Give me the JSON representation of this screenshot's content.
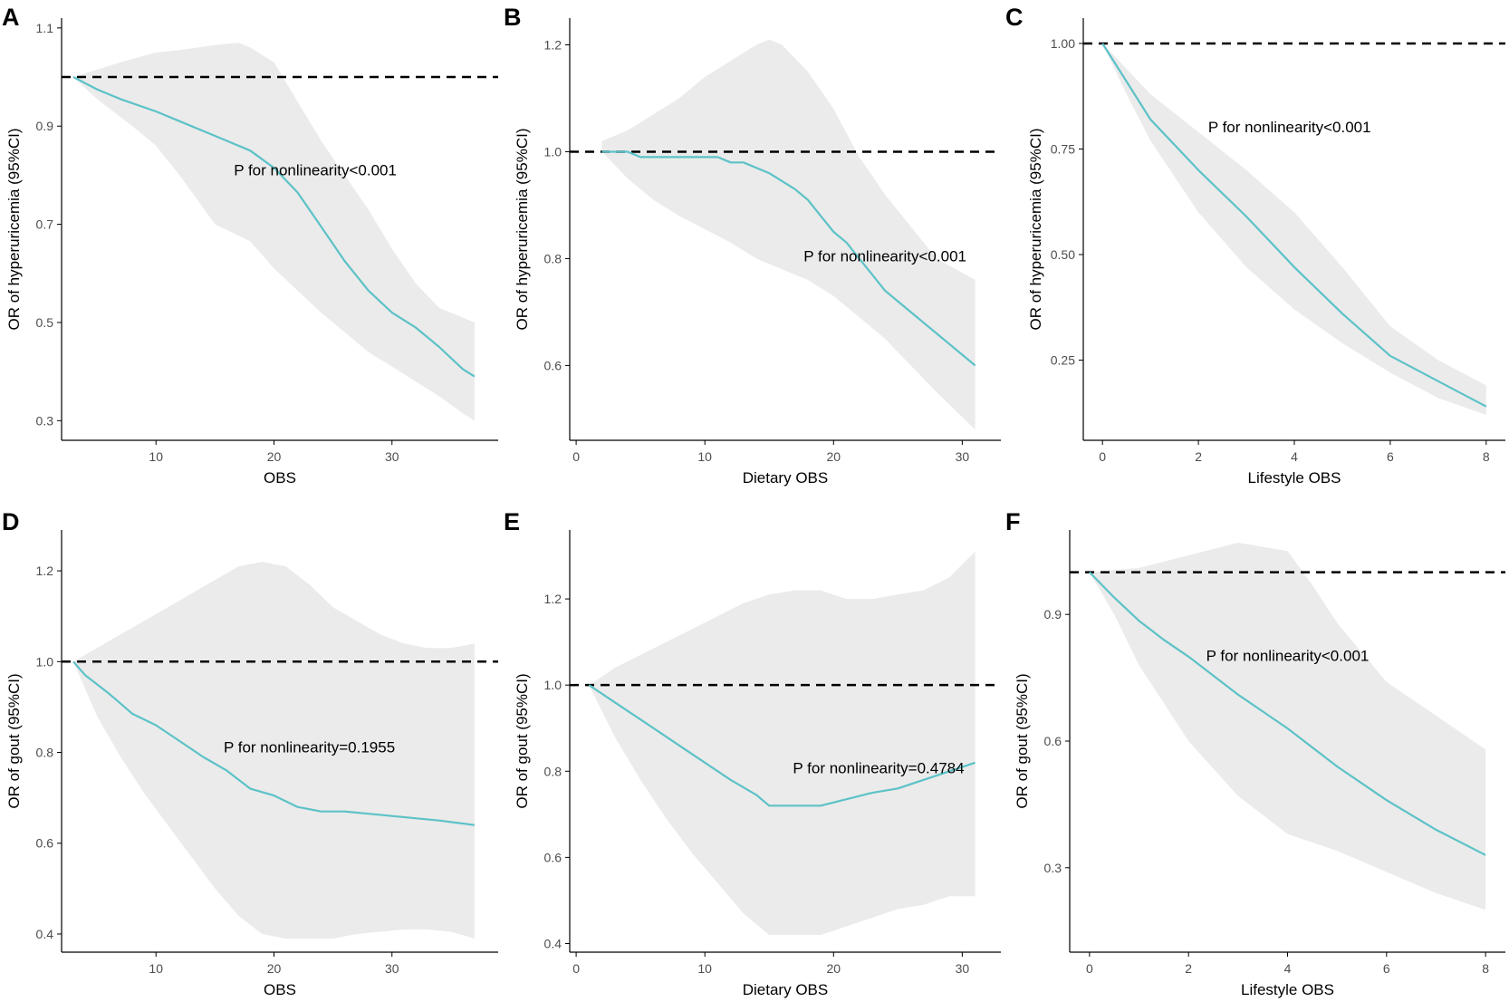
{
  "chart_data": [
    {
      "panel": "A",
      "type": "line",
      "xlabel": "OBS",
      "ylabel": "OR of hyperuricemia (95%CI)",
      "xlim": [
        2,
        39
      ],
      "ylim": [
        0.26,
        1.12
      ],
      "xticks": [
        10,
        20,
        30
      ],
      "yticks": [
        0.3,
        0.5,
        0.7,
        0.9,
        1.1
      ],
      "ytick_labels": [
        "0.3",
        "0.5",
        "0.7",
        "0.9",
        "1.1"
      ],
      "reference_y": 1.0,
      "annotation": "P for nonlinearity<0.001",
      "annotation_at": [
        23.5,
        0.8
      ],
      "series": [
        {
          "name": "OR",
          "x": [
            3,
            5,
            7,
            10,
            12,
            15,
            18,
            20,
            22,
            24,
            26,
            28,
            30,
            32,
            34,
            36,
            37
          ],
          "y": [
            1.0,
            0.975,
            0.955,
            0.93,
            0.91,
            0.88,
            0.85,
            0.815,
            0.765,
            0.695,
            0.625,
            0.565,
            0.52,
            0.49,
            0.45,
            0.405,
            0.39
          ]
        },
        {
          "name": "CI upper",
          "x": [
            3,
            5,
            7,
            10,
            12,
            15,
            17,
            18,
            20,
            22,
            24,
            26,
            28,
            30,
            32,
            34,
            37
          ],
          "y": [
            1.0,
            1.015,
            1.03,
            1.05,
            1.055,
            1.065,
            1.07,
            1.06,
            1.03,
            0.95,
            0.87,
            0.8,
            0.73,
            0.65,
            0.58,
            0.53,
            0.5
          ]
        },
        {
          "name": "CI lower",
          "x": [
            3,
            5,
            8,
            10,
            12,
            15,
            18,
            20,
            22,
            24,
            26,
            28,
            30,
            32,
            34,
            36,
            37
          ],
          "y": [
            1.0,
            0.955,
            0.9,
            0.86,
            0.8,
            0.7,
            0.665,
            0.61,
            0.565,
            0.52,
            0.48,
            0.44,
            0.41,
            0.38,
            0.35,
            0.315,
            0.3
          ]
        }
      ]
    },
    {
      "panel": "B",
      "type": "line",
      "xlabel": "Dietary OBS",
      "ylabel": "OR of hyperuricemia (95%CI)",
      "xlim": [
        -0.5,
        33
      ],
      "ylim": [
        0.46,
        1.25
      ],
      "xticks": [
        0,
        10,
        20,
        30
      ],
      "yticks": [
        0.6,
        0.8,
        1.0,
        1.2
      ],
      "ytick_labels": [
        "0.6",
        "0.8",
        "1.0",
        "1.2"
      ],
      "reference_y": 1.0,
      "annotation": "P for nonlinearity<0.001",
      "annotation_at": [
        24,
        0.795
      ],
      "series": [
        {
          "name": "OR",
          "x": [
            2,
            3,
            4,
            5,
            8,
            10,
            11,
            12,
            13,
            15,
            17,
            18,
            19,
            20,
            21,
            22,
            23,
            24,
            25,
            26,
            27,
            28,
            29,
            30,
            31
          ],
          "y": [
            1.0,
            1.0,
            1.0,
            0.99,
            0.99,
            0.99,
            0.99,
            0.98,
            0.98,
            0.96,
            0.93,
            0.91,
            0.88,
            0.85,
            0.83,
            0.8,
            0.77,
            0.74,
            0.72,
            0.7,
            0.68,
            0.66,
            0.64,
            0.62,
            0.6
          ]
        },
        {
          "name": "CI upper",
          "x": [
            2,
            4,
            6,
            8,
            10,
            12,
            14,
            15,
            16,
            18,
            20,
            22,
            24,
            26,
            28,
            31
          ],
          "y": [
            1.02,
            1.04,
            1.07,
            1.1,
            1.14,
            1.17,
            1.2,
            1.21,
            1.2,
            1.15,
            1.08,
            0.99,
            0.92,
            0.86,
            0.8,
            0.76
          ]
        },
        {
          "name": "CI lower",
          "x": [
            2,
            4,
            6,
            8,
            10,
            12,
            14,
            16,
            18,
            20,
            22,
            24,
            26,
            28,
            31
          ],
          "y": [
            1.0,
            0.95,
            0.91,
            0.88,
            0.855,
            0.83,
            0.8,
            0.78,
            0.76,
            0.73,
            0.69,
            0.65,
            0.6,
            0.55,
            0.48
          ]
        }
      ]
    },
    {
      "panel": "C",
      "type": "line",
      "xlabel": "Lifestyle OBS",
      "ylabel": "OR of hyperuricemia (95%CI)",
      "xlim": [
        -0.4,
        8.4
      ],
      "ylim": [
        0.06,
        1.06
      ],
      "xticks": [
        0,
        2,
        4,
        6,
        8
      ],
      "yticks": [
        0.25,
        0.5,
        0.75,
        1.0
      ],
      "ytick_labels": [
        "0.25",
        "0.50",
        "0.75",
        "1.00"
      ],
      "reference_y": 1.0,
      "annotation": "P for nonlinearity<0.001",
      "annotation_at": [
        3.9,
        0.79
      ],
      "series": [
        {
          "name": "OR",
          "x": [
            0,
            0.5,
            1,
            1.5,
            2,
            3,
            4,
            5,
            6,
            7,
            8
          ],
          "y": [
            1.0,
            0.91,
            0.82,
            0.76,
            0.7,
            0.59,
            0.47,
            0.36,
            0.26,
            0.2,
            0.14
          ]
        },
        {
          "name": "CI upper",
          "x": [
            0,
            0.5,
            1,
            2,
            3,
            4,
            5,
            6,
            7,
            8
          ],
          "y": [
            1.0,
            0.94,
            0.88,
            0.79,
            0.7,
            0.6,
            0.47,
            0.33,
            0.25,
            0.19
          ]
        },
        {
          "name": "CI lower",
          "x": [
            0,
            0.5,
            1,
            2,
            3,
            4,
            5,
            6,
            7,
            8
          ],
          "y": [
            1.0,
            0.88,
            0.77,
            0.6,
            0.47,
            0.37,
            0.29,
            0.22,
            0.16,
            0.12
          ]
        }
      ]
    },
    {
      "panel": "D",
      "type": "line",
      "xlabel": "OBS",
      "ylabel": "OR of gout (95%CI)",
      "xlim": [
        2,
        39
      ],
      "ylim": [
        0.36,
        1.29
      ],
      "xticks": [
        10,
        20,
        30
      ],
      "yticks": [
        0.4,
        0.6,
        0.8,
        1.0,
        1.2
      ],
      "ytick_labels": [
        "0.4",
        "0.6",
        "0.8",
        "1.0",
        "1.2"
      ],
      "reference_y": 1.0,
      "annotation": "P for nonlinearity=0.1955",
      "annotation_at": [
        23,
        0.8
      ],
      "series": [
        {
          "name": "OR",
          "x": [
            3,
            4,
            6,
            8,
            10,
            12,
            14,
            16,
            18,
            20,
            22,
            24,
            26,
            28,
            30,
            32,
            34,
            37
          ],
          "y": [
            1.0,
            0.97,
            0.93,
            0.885,
            0.86,
            0.825,
            0.79,
            0.76,
            0.72,
            0.705,
            0.68,
            0.67,
            0.67,
            0.665,
            0.66,
            0.655,
            0.65,
            0.64
          ]
        },
        {
          "name": "CI upper",
          "x": [
            3,
            5,
            7,
            9,
            11,
            13,
            15,
            17,
            19,
            21,
            23,
            25,
            27,
            29,
            31,
            33,
            35,
            37
          ],
          "y": [
            1.0,
            1.03,
            1.06,
            1.09,
            1.12,
            1.15,
            1.18,
            1.21,
            1.22,
            1.21,
            1.17,
            1.12,
            1.09,
            1.06,
            1.04,
            1.03,
            1.03,
            1.04
          ]
        },
        {
          "name": "CI lower",
          "x": [
            3,
            5,
            7,
            9,
            11,
            13,
            15,
            17,
            19,
            21,
            23,
            25,
            27,
            29,
            31,
            33,
            35,
            37
          ],
          "y": [
            1.0,
            0.88,
            0.79,
            0.71,
            0.64,
            0.57,
            0.5,
            0.44,
            0.4,
            0.39,
            0.39,
            0.39,
            0.4,
            0.405,
            0.41,
            0.41,
            0.405,
            0.39
          ]
        }
      ]
    },
    {
      "panel": "E",
      "type": "line",
      "xlabel": "Dietary OBS",
      "ylabel": "OR of gout (95%CI)",
      "xlim": [
        -0.5,
        33
      ],
      "ylim": [
        0.38,
        1.36
      ],
      "xticks": [
        0,
        10,
        20,
        30
      ],
      "yticks": [
        0.4,
        0.6,
        0.8,
        1.0,
        1.2
      ],
      "ytick_labels": [
        "0.4",
        "0.6",
        "0.8",
        "1.0",
        "1.2"
      ],
      "reference_y": 1.0,
      "annotation": "P for nonlinearity=0.4784",
      "annotation_at": [
        23.5,
        0.795
      ],
      "series": [
        {
          "name": "OR",
          "x": [
            1,
            2,
            4,
            6,
            8,
            10,
            12,
            14,
            15,
            17,
            19,
            21,
            23,
            25,
            27,
            29,
            31
          ],
          "y": [
            1.0,
            0.98,
            0.94,
            0.9,
            0.86,
            0.82,
            0.78,
            0.745,
            0.72,
            0.72,
            0.72,
            0.735,
            0.75,
            0.76,
            0.78,
            0.8,
            0.82
          ]
        },
        {
          "name": "CI upper",
          "x": [
            1,
            3,
            5,
            7,
            9,
            11,
            13,
            15,
            17,
            19,
            21,
            23,
            25,
            27,
            29,
            31
          ],
          "y": [
            1.0,
            1.04,
            1.07,
            1.1,
            1.13,
            1.16,
            1.19,
            1.21,
            1.22,
            1.22,
            1.2,
            1.2,
            1.21,
            1.22,
            1.25,
            1.31
          ]
        },
        {
          "name": "CI lower",
          "x": [
            1,
            3,
            5,
            7,
            9,
            11,
            13,
            15,
            17,
            19,
            21,
            23,
            25,
            27,
            29,
            31
          ],
          "y": [
            1.0,
            0.88,
            0.78,
            0.69,
            0.61,
            0.54,
            0.47,
            0.42,
            0.42,
            0.42,
            0.44,
            0.46,
            0.48,
            0.49,
            0.51,
            0.51
          ]
        }
      ]
    },
    {
      "panel": "F",
      "type": "line",
      "xlabel": "Lifestyle OBS",
      "ylabel": "OR of gout (95%CI)",
      "xlim": [
        -0.4,
        8.4
      ],
      "ylim": [
        0.1,
        1.1
      ],
      "xticks": [
        0,
        2,
        4,
        6,
        8
      ],
      "yticks": [
        0.3,
        0.6,
        0.9
      ],
      "ytick_labels": [
        "0.3",
        "0.6",
        "0.9"
      ],
      "reference_y": 1.0,
      "annotation": "P for nonlinearity<0.001",
      "annotation_at": [
        4.0,
        0.79
      ],
      "series": [
        {
          "name": "OR",
          "x": [
            0,
            0.5,
            1,
            1.5,
            2,
            3,
            4,
            5,
            6,
            7,
            8
          ],
          "y": [
            1.0,
            0.94,
            0.885,
            0.84,
            0.8,
            0.71,
            0.63,
            0.54,
            0.46,
            0.39,
            0.33
          ]
        },
        {
          "name": "CI upper",
          "x": [
            0,
            0.5,
            1,
            2,
            3,
            4,
            4.5,
            5,
            6,
            7,
            8
          ],
          "y": [
            1.0,
            1.005,
            1.01,
            1.04,
            1.07,
            1.05,
            0.97,
            0.88,
            0.74,
            0.66,
            0.58
          ]
        },
        {
          "name": "CI lower",
          "x": [
            0,
            0.5,
            1,
            2,
            3,
            4,
            5,
            6,
            7,
            8
          ],
          "y": [
            1.0,
            0.9,
            0.78,
            0.6,
            0.47,
            0.38,
            0.34,
            0.29,
            0.24,
            0.2
          ]
        }
      ]
    }
  ],
  "colors": {
    "line": "#5cc2c7",
    "ci_band": "#ebebeb",
    "reference": "#000000",
    "axis": "#000000",
    "tick_label": "#4d4d4d"
  }
}
